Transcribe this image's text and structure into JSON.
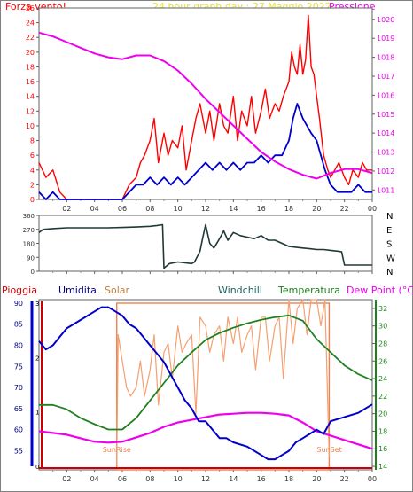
{
  "header": {
    "wind_label": "Forza vento!",
    "title": "24 hour graph day : 27 Maggio 2022",
    "pressure_label": "Pressione"
  },
  "mid_header": {
    "rain_label": "Pioggia",
    "humidity_label": "Umidita",
    "solar_label": "Solar",
    "windchill_label": "Windchill",
    "temp_label": "Temperatura",
    "dewpoint_label": "Dew Point (°C)"
  },
  "annotations": {
    "sunrise": "SunRise",
    "sunset": "SunSet"
  },
  "colors": {
    "wind_gust": "#ff0000",
    "wind_avg": "#0000cc",
    "pressure": "#ee00ee",
    "direction": "#203838",
    "humidity": "#0000cc",
    "solar": "#f4a070",
    "temperature": "#208020",
    "dewpoint": "#ee00ee",
    "rain": "#cc0000",
    "sun_marker": "#f08050"
  },
  "chart_data": [
    {
      "type": "line",
      "x_ticks": [
        "02",
        "04",
        "06",
        "08",
        "10",
        "12",
        "14",
        "16",
        "18",
        "20",
        "22",
        "00"
      ],
      "y_left_ticks": [
        "0",
        "2",
        "4",
        "6",
        "8",
        "10",
        "12",
        "14",
        "16",
        "18",
        "20",
        "22",
        "24",
        "26"
      ],
      "y_right_ticks": [
        "1011",
        "1012",
        "1013",
        "1014",
        "1015",
        "1016",
        "1017",
        "1018",
        "1019",
        "1020"
      ],
      "ylim_left": [
        0,
        26
      ],
      "ylim_right": [
        1010.5,
        1020.6
      ],
      "series": [
        {
          "name": "Pressione",
          "axis": "right",
          "x": [
            0,
            1,
            2,
            3,
            4,
            5,
            6,
            7,
            8,
            9,
            10,
            11,
            12,
            13,
            14,
            15,
            16,
            17,
            18,
            19,
            20,
            21,
            22,
            23,
            24
          ],
          "values": [
            1019.3,
            1019.1,
            1018.8,
            1018.5,
            1018.2,
            1018.0,
            1017.9,
            1018.1,
            1018.1,
            1017.8,
            1017.3,
            1016.6,
            1015.8,
            1015.1,
            1014.4,
            1013.7,
            1013.0,
            1012.5,
            1012.1,
            1011.8,
            1011.6,
            1011.9,
            1012.1,
            1012.1,
            1011.9
          ]
        },
        {
          "name": "Forza vento!",
          "x": [
            0,
            0.5,
            1,
            1.5,
            2,
            3,
            4,
            5,
            6,
            6.5,
            7,
            7.3,
            7.6,
            8,
            8.3,
            8.6,
            9,
            9.3,
            9.6,
            10,
            10.3,
            10.6,
            11,
            11.3,
            11.6,
            12,
            12.3,
            12.6,
            13,
            13.3,
            13.6,
            14,
            14.3,
            14.6,
            15,
            15.3,
            15.6,
            16,
            16.3,
            16.6,
            17,
            17.3,
            17.6,
            18,
            18.2,
            18.4,
            18.6,
            18.8,
            19,
            19.2,
            19.4,
            19.6,
            19.8,
            20,
            20.2,
            20.5,
            20.8,
            21,
            21.3,
            21.6,
            22,
            22.3,
            22.6,
            23,
            23.3,
            23.6,
            24
          ],
          "values": [
            5,
            3,
            4,
            1,
            0,
            0,
            0,
            0,
            0,
            2,
            3,
            5,
            6,
            8,
            11,
            5,
            9,
            6,
            8,
            7,
            10,
            4,
            8,
            11,
            13,
            9,
            12,
            8,
            13,
            10,
            9,
            14,
            8,
            12,
            10,
            14,
            9,
            12,
            15,
            11,
            13,
            12,
            14,
            16,
            20,
            18,
            17,
            21,
            17,
            19,
            25,
            18,
            17,
            14,
            11,
            6,
            4,
            3,
            4,
            5,
            3,
            2,
            4,
            3,
            5,
            4,
            4
          ]
        },
        {
          "name": "wind average",
          "x": [
            0,
            0.5,
            1,
            1.5,
            2,
            3,
            4,
            5,
            6,
            6.5,
            7,
            7.5,
            8,
            8.5,
            9,
            9.5,
            10,
            10.5,
            11,
            11.5,
            12,
            12.5,
            13,
            13.5,
            14,
            14.5,
            15,
            15.5,
            16,
            16.5,
            17,
            17.5,
            18,
            18.3,
            18.6,
            19,
            19.3,
            19.6,
            20,
            20.3,
            20.6,
            21,
            21.5,
            22,
            22.5,
            23,
            23.5,
            24
          ],
          "values": [
            1,
            0,
            1,
            0,
            0,
            0,
            0,
            0,
            0,
            1,
            2,
            2,
            3,
            2,
            3,
            2,
            3,
            2,
            3,
            4,
            5,
            4,
            5,
            4,
            5,
            4,
            5,
            5,
            6,
            5,
            6,
            6,
            8,
            11,
            13,
            11,
            10,
            9,
            8,
            6,
            4,
            2,
            1,
            1,
            1,
            2,
            1,
            1
          ]
        }
      ]
    },
    {
      "type": "line",
      "x_ticks": [
        "02",
        "04",
        "06",
        "08",
        "10",
        "12",
        "14",
        "16",
        "18",
        "20",
        "22",
        "00"
      ],
      "y_ticks": [
        "0",
        "90",
        "180",
        "270",
        "360"
      ],
      "y_right_labels": [
        "N",
        "W",
        "S",
        "E",
        "N"
      ],
      "ylim": [
        0,
        360
      ],
      "series": [
        {
          "name": "wind direction",
          "x": [
            0,
            0.3,
            1,
            2,
            3,
            4,
            5,
            6,
            7,
            8,
            8.5,
            8.9,
            9.0,
            9.4,
            10,
            11,
            11.2,
            11.6,
            11.8,
            12,
            12.3,
            12.6,
            13,
            13.3,
            13.6,
            14,
            14.5,
            15,
            15.5,
            16,
            16.5,
            17,
            17.5,
            18,
            18.5,
            19,
            19.5,
            20,
            20.5,
            21,
            21.5,
            21.8,
            22,
            23,
            24
          ],
          "values": [
            250,
            270,
            275,
            280,
            280,
            280,
            280,
            282,
            285,
            290,
            295,
            300,
            20,
            50,
            60,
            50,
            60,
            130,
            220,
            300,
            180,
            150,
            210,
            260,
            200,
            250,
            230,
            220,
            210,
            230,
            200,
            200,
            180,
            160,
            155,
            150,
            145,
            140,
            140,
            135,
            130,
            125,
            40,
            40,
            40
          ]
        }
      ]
    },
    {
      "type": "line",
      "x_ticks": [
        "02",
        "04",
        "06",
        "08",
        "10",
        "12",
        "14",
        "16",
        "18",
        "20",
        "22",
        "00"
      ],
      "y_left_ticks": [
        "55",
        "60",
        "65",
        "70",
        "75",
        "80",
        "85",
        "90"
      ],
      "y_right_ticks": [
        "14",
        "16",
        "18",
        "20",
        "22",
        "24",
        "26",
        "28",
        "30",
        "32"
      ],
      "rain_ticks": [
        "3",
        "2",
        "1",
        "0"
      ],
      "ylim_left": [
        50.5,
        90.8
      ],
      "ylim_right": [
        13.6,
        33
      ],
      "series": [
        {
          "name": "Umidita",
          "axis": "left",
          "x": [
            0,
            0.5,
            1,
            1.5,
            2,
            3,
            4,
            4.5,
            5,
            5.5,
            6,
            6.5,
            7,
            7.5,
            8,
            8.5,
            9,
            9.5,
            10,
            10.5,
            11,
            11.5,
            12,
            12.5,
            13,
            13.5,
            14,
            15,
            16,
            16.5,
            17,
            17.5,
            18,
            18.5,
            19,
            19.5,
            20,
            20.5,
            21,
            22,
            23,
            24
          ],
          "values": [
            81,
            79,
            80,
            82,
            84,
            86,
            88,
            89,
            89,
            88,
            87,
            85,
            84,
            82,
            80,
            78,
            76,
            73,
            70,
            67,
            65,
            62,
            62,
            60,
            58,
            58,
            57,
            56,
            54,
            53,
            53,
            54,
            55,
            57,
            58,
            59,
            60,
            59,
            62,
            63,
            64,
            66
          ]
        },
        {
          "name": "Temperatura",
          "axis": "right",
          "x": [
            0,
            1,
            2,
            3,
            4,
            5,
            6,
            7,
            8,
            9,
            10,
            11,
            12,
            13,
            14,
            15,
            16,
            17,
            18,
            19,
            20,
            21,
            22,
            23,
            24
          ],
          "values": [
            21,
            21,
            20.5,
            19.5,
            18.8,
            18.2,
            18.2,
            19.5,
            21.5,
            23.5,
            25.5,
            27,
            28.4,
            29.2,
            29.8,
            30.3,
            30.7,
            31,
            31.2,
            30.6,
            28.5,
            27,
            25.5,
            24.5,
            23.8
          ]
        },
        {
          "name": "Dew Point (°C)",
          "axis": "right",
          "x": [
            0,
            1,
            2,
            3,
            4,
            5,
            6,
            7,
            8,
            9,
            10,
            11,
            12,
            13,
            14,
            15,
            16,
            17,
            18,
            19,
            20,
            21,
            22,
            23,
            24
          ],
          "values": [
            18,
            17.8,
            17.6,
            17.2,
            16.8,
            16.7,
            16.8,
            17.3,
            17.8,
            18.5,
            19,
            19.3,
            19.6,
            19.9,
            20,
            20.1,
            20.1,
            20,
            19.8,
            19,
            18,
            17.5,
            17,
            16.5,
            16
          ]
        },
        {
          "name": "Solar",
          "axis": "right",
          "x": [
            5.6,
            5.7,
            6,
            6.3,
            6.6,
            7,
            7.3,
            7.6,
            8,
            8.3,
            8.6,
            9,
            9.3,
            9.6,
            10,
            10.3,
            10.6,
            11,
            11.3,
            11.6,
            12,
            12.3,
            12.6,
            13,
            13.3,
            13.6,
            14,
            14.3,
            14.6,
            15,
            15.3,
            15.6,
            16,
            16.3,
            16.6,
            17,
            17.3,
            17.6,
            18,
            18.3,
            18.6,
            19,
            19.3,
            19.6,
            20,
            20.3,
            20.6,
            20.9
          ],
          "values": [
            14,
            29,
            26,
            23,
            22,
            23,
            26,
            22,
            25,
            29,
            21,
            27,
            28,
            24,
            30,
            27,
            28,
            29,
            20,
            31,
            30,
            27,
            29,
            30,
            26,
            31,
            28,
            31,
            27,
            29,
            30,
            25,
            31,
            31,
            26,
            30,
            31,
            24,
            33,
            28,
            32,
            33,
            29,
            33,
            33,
            30,
            33,
            15
          ]
        },
        {
          "name": "Pioggia",
          "axis": "rain",
          "x": [
            0,
            24
          ],
          "values": [
            0,
            0
          ]
        }
      ]
    }
  ]
}
